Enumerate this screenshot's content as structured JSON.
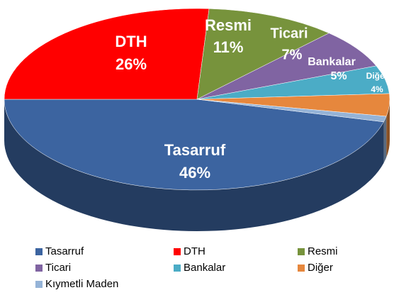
{
  "chart_data": {
    "type": "pie3d",
    "categories": [
      "Tasarruf",
      "DTH",
      "Resmi",
      "Ticari",
      "Bankalar",
      "Diğer",
      "Kıymetli Maden"
    ],
    "values": [
      46,
      26,
      11,
      7,
      5,
      4,
      1
    ],
    "value_labels": [
      "46%",
      "26%",
      "11%",
      "7%",
      "5%",
      "4%",
      null
    ],
    "colors": [
      "#3c64a0",
      "#ff0000",
      "#77933c",
      "#8064a2",
      "#4bacc6",
      "#e6873d",
      "#95b3d7"
    ],
    "legend": "bottom"
  }
}
